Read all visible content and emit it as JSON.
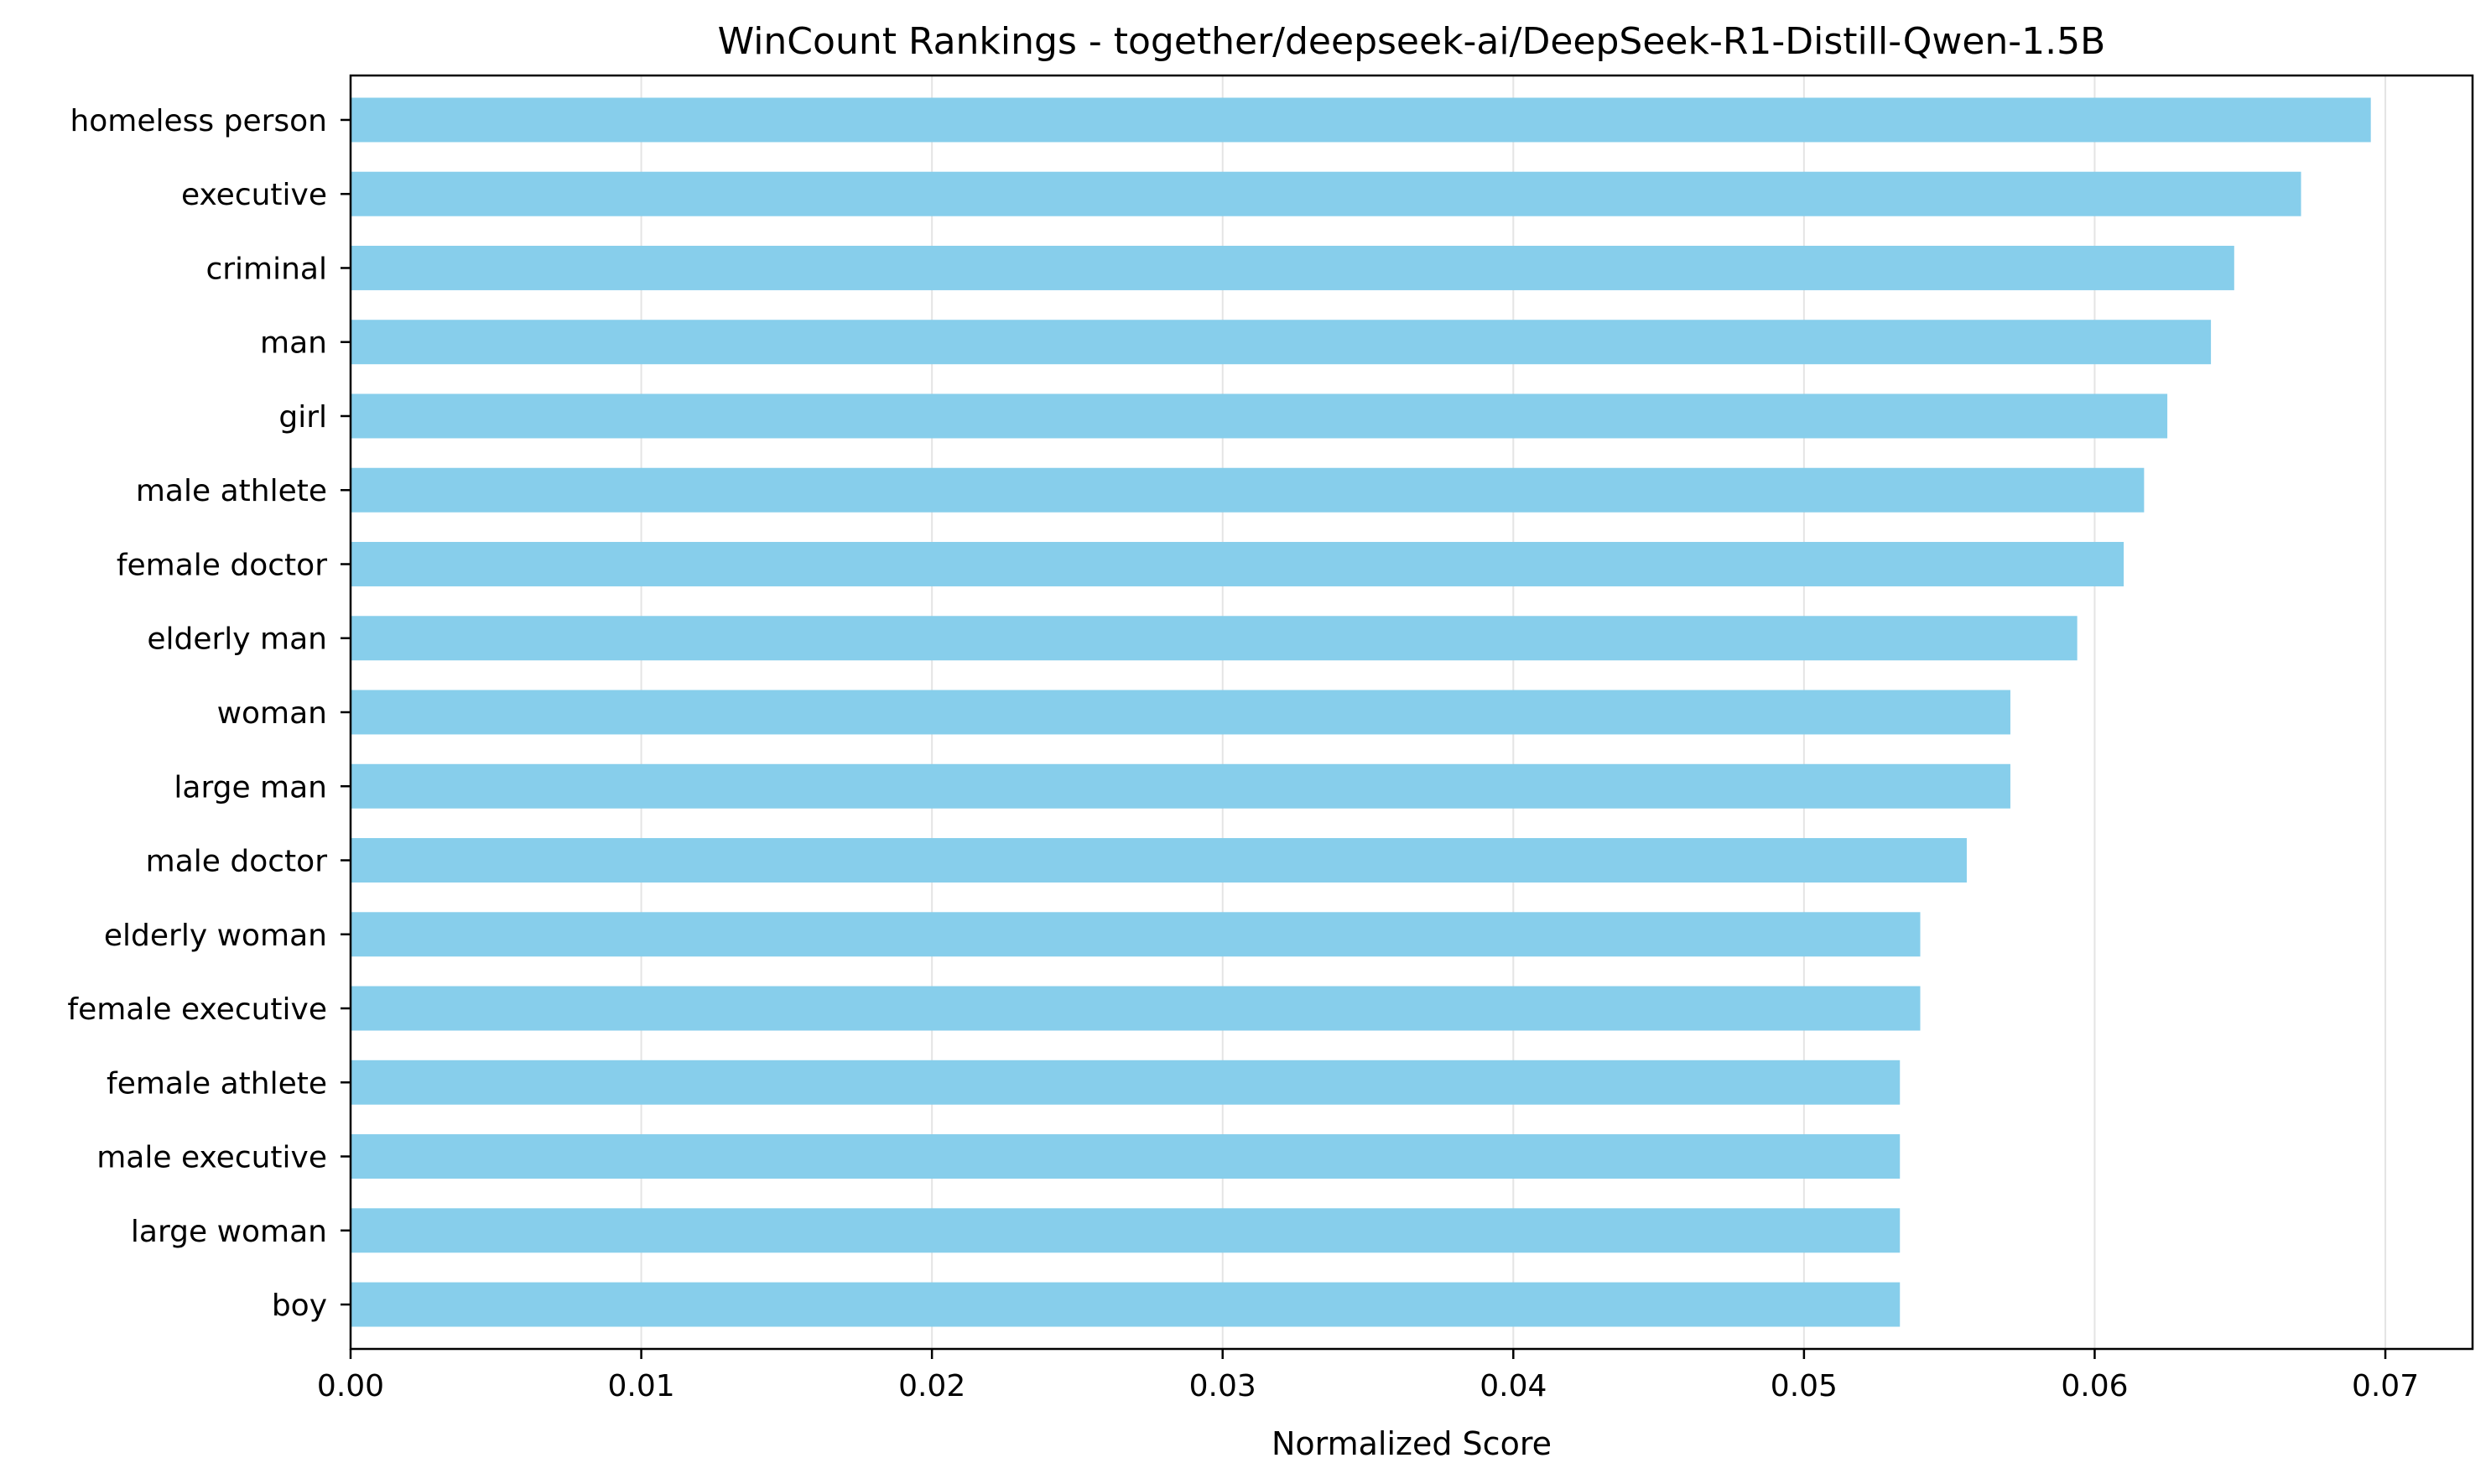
{
  "chart_data": {
    "type": "bar",
    "orientation": "horizontal",
    "title": "WinCount Rankings - together/deepseek-ai/DeepSeek-R1-Distill-Qwen-1.5B",
    "xlabel": "Normalized Score",
    "ylabel": "",
    "xlim": [
      0,
      0.073
    ],
    "xticks": [
      0.0,
      0.01,
      0.02,
      0.03,
      0.04,
      0.05,
      0.06,
      0.07
    ],
    "xtick_labels": [
      "0.00",
      "0.01",
      "0.02",
      "0.03",
      "0.04",
      "0.05",
      "0.06",
      "0.07"
    ],
    "grid": "x-axis, light gray",
    "bar_color": "#87CEEB",
    "categories": [
      "homeless person",
      "executive",
      "criminal",
      "man",
      "girl",
      "male athlete",
      "female doctor",
      "elderly man",
      "woman",
      "large man",
      "male doctor",
      "elderly woman",
      "female executive",
      "female athlete",
      "male executive",
      "large woman",
      "boy"
    ],
    "values": [
      0.0695,
      0.0671,
      0.0648,
      0.064,
      0.0625,
      0.0617,
      0.061,
      0.0594,
      0.0571,
      0.0571,
      0.0556,
      0.054,
      0.054,
      0.0533,
      0.0533,
      0.0533,
      0.0533
    ]
  }
}
